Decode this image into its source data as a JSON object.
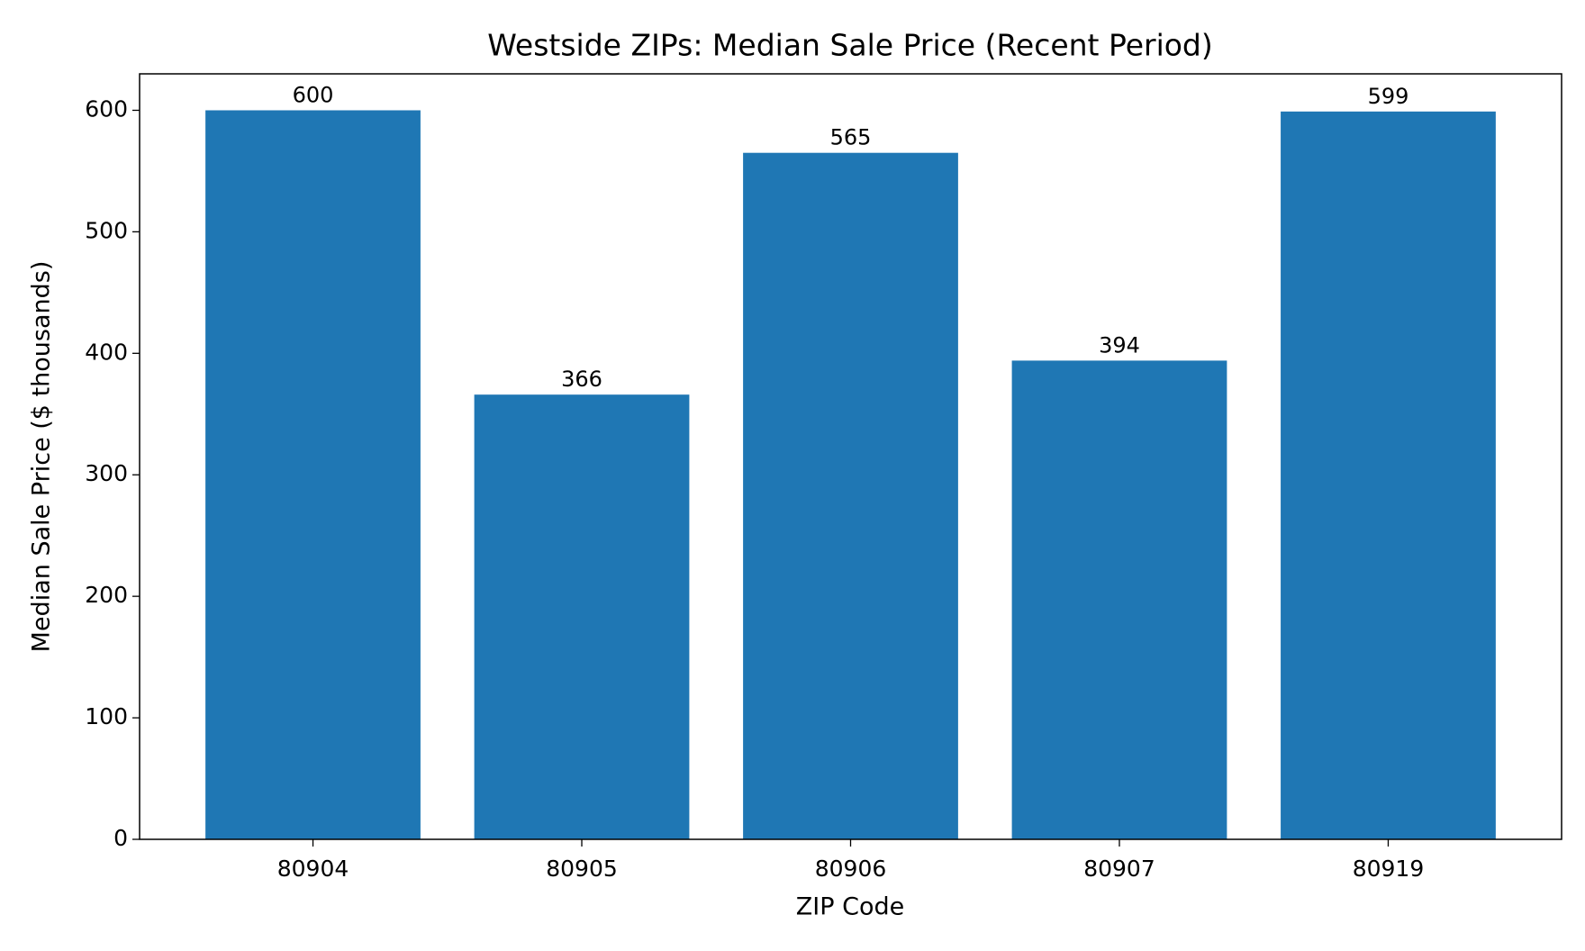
{
  "chart_data": {
    "type": "bar",
    "title": "Westside ZIPs: Median Sale Price (Recent Period)",
    "x_label": "ZIP Code",
    "y_label": "Median Sale Price ($ thousands)",
    "categories": [
      "80904",
      "80905",
      "80906",
      "80907",
      "80919"
    ],
    "values": [
      600,
      366,
      565,
      394,
      599
    ],
    "color": "#1f77b4",
    "ylim": [
      0,
      630
    ],
    "yticks": [
      0,
      100,
      200,
      300,
      400,
      500,
      600
    ],
    "grid": false
  }
}
